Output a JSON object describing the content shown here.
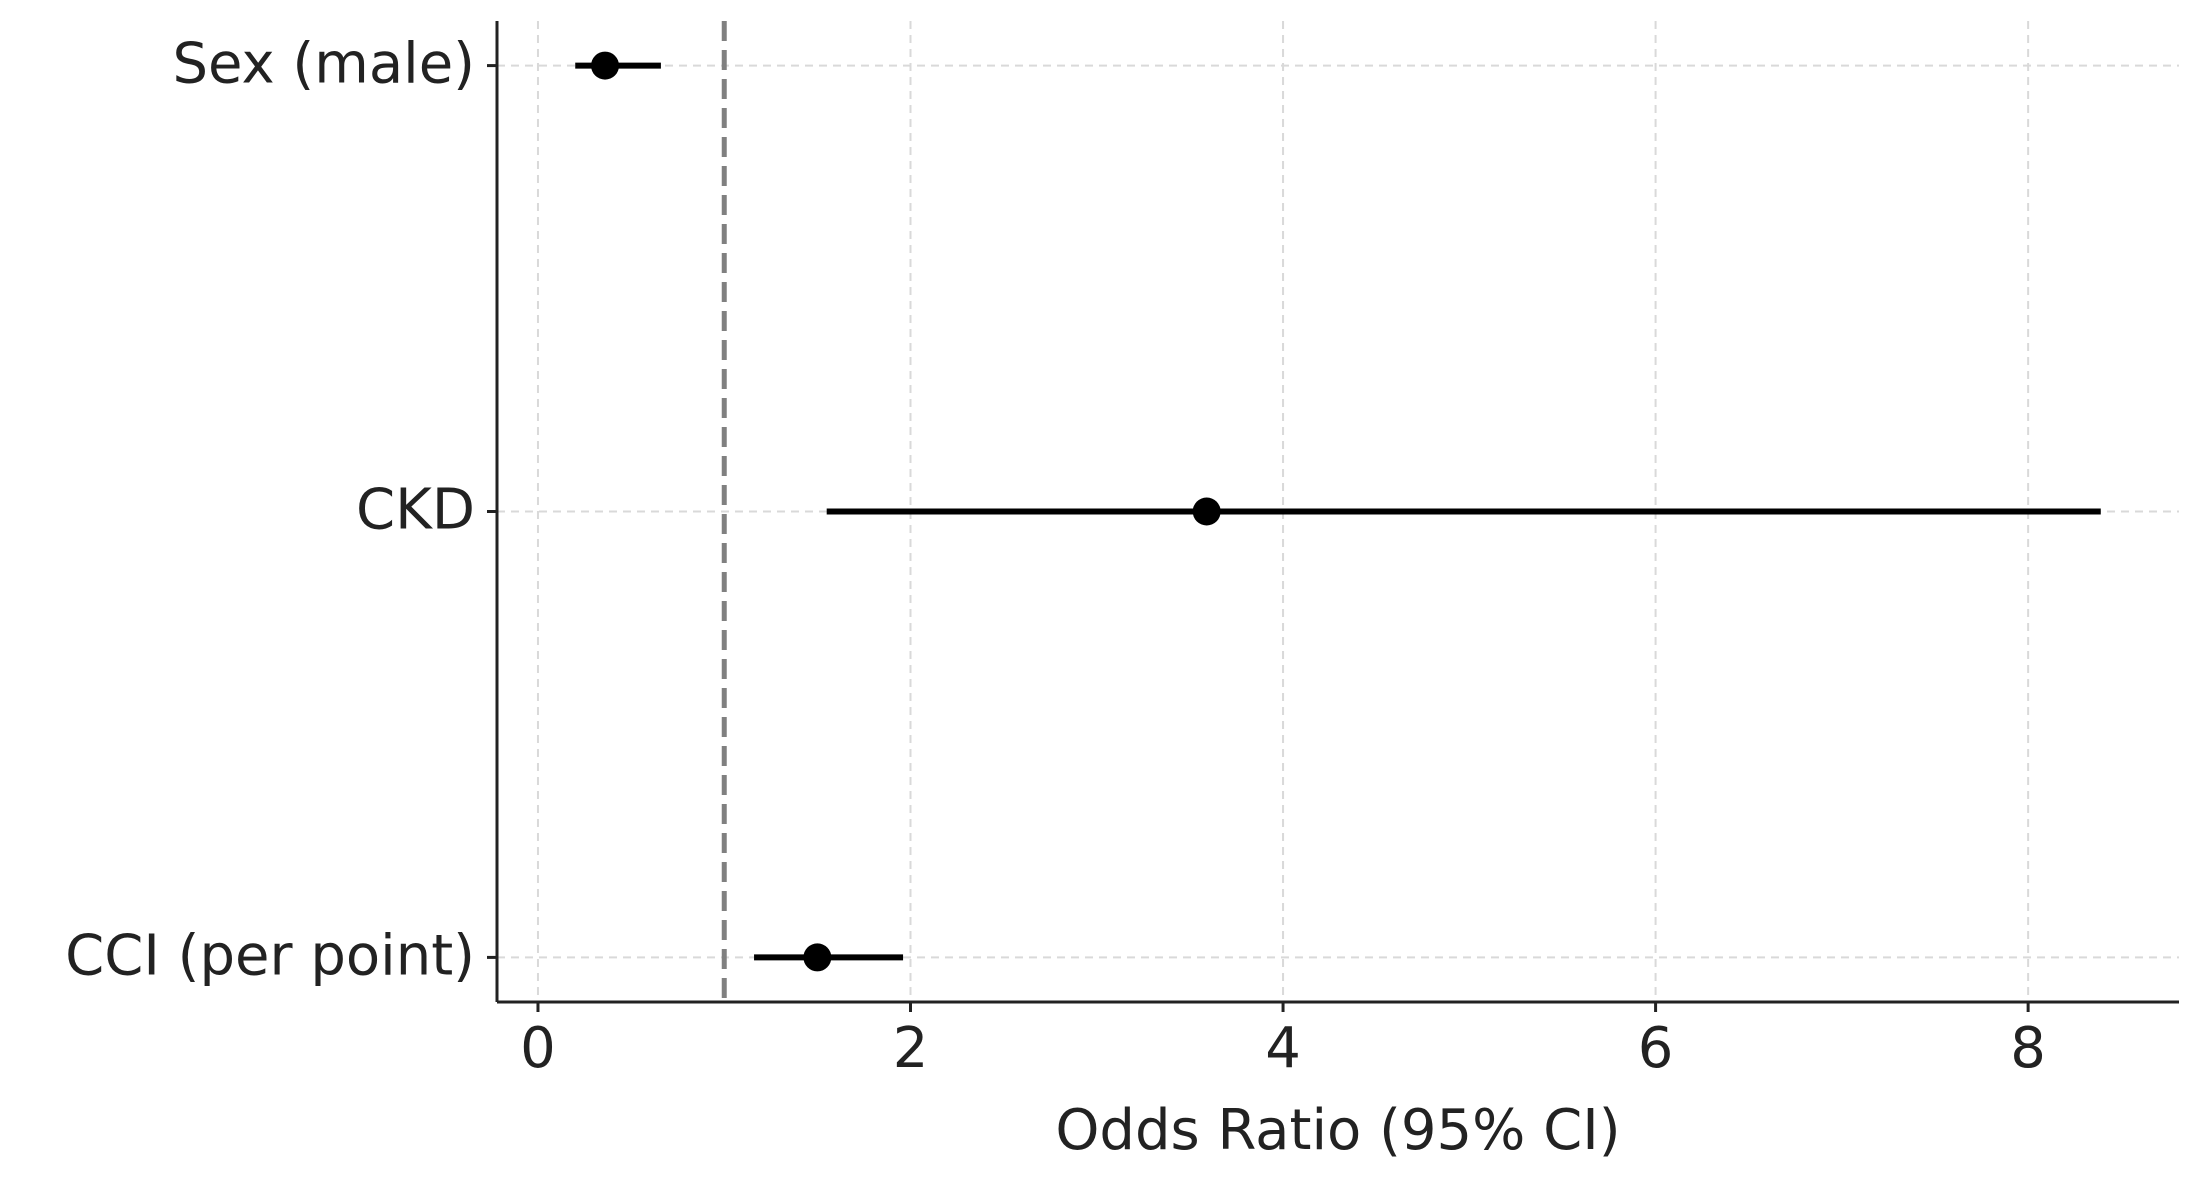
{
  "chart_data": {
    "type": "forest",
    "x_label": "Odds Ratio (95% CI)",
    "categories": [
      "Sex (male)",
      "CKD",
      "CCI (per point)"
    ],
    "values": [
      0.36,
      3.59,
      1.5
    ],
    "ci_lower": [
      0.2,
      1.55,
      1.16
    ],
    "ci_upper": [
      0.66,
      8.39,
      1.96
    ],
    "color": "#000000",
    "reference_line": 1,
    "reference_color": "#808080",
    "xlim": [
      -0.22,
      8.81
    ],
    "xticks": [
      0,
      2,
      4,
      6,
      8
    ],
    "grid": true
  }
}
